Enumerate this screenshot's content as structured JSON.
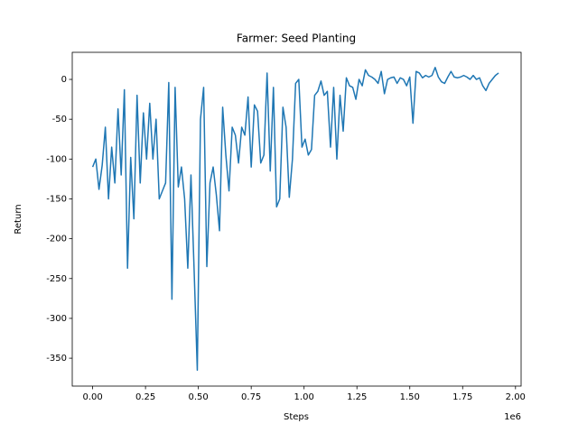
{
  "chart_data": {
    "type": "line",
    "title": "Farmer: Seed Planting",
    "xlabel": "Steps",
    "ylabel": "Return",
    "x_offset_label": "1e6",
    "x": [
      0,
      15000,
      30000,
      45000,
      60000,
      75000,
      90000,
      105000,
      120000,
      135000,
      150000,
      165000,
      180000,
      195000,
      210000,
      225000,
      240000,
      255000,
      270000,
      285000,
      300000,
      315000,
      330000,
      345000,
      360000,
      375000,
      390000,
      405000,
      420000,
      435000,
      450000,
      465000,
      480000,
      495000,
      510000,
      525000,
      540000,
      555000,
      570000,
      585000,
      600000,
      615000,
      630000,
      645000,
      660000,
      675000,
      690000,
      705000,
      720000,
      735000,
      750000,
      765000,
      780000,
      795000,
      810000,
      825000,
      840000,
      855000,
      870000,
      885000,
      900000,
      915000,
      930000,
      945000,
      960000,
      975000,
      990000,
      1005000,
      1020000,
      1035000,
      1050000,
      1065000,
      1080000,
      1095000,
      1110000,
      1125000,
      1140000,
      1155000,
      1170000,
      1185000,
      1200000,
      1215000,
      1230000,
      1245000,
      1260000,
      1275000,
      1290000,
      1305000,
      1320000,
      1335000,
      1350000,
      1365000,
      1380000,
      1395000,
      1410000,
      1425000,
      1440000,
      1455000,
      1470000,
      1485000,
      1500000,
      1515000,
      1530000,
      1545000,
      1560000,
      1575000,
      1590000,
      1605000,
      1620000,
      1635000,
      1650000,
      1665000,
      1680000,
      1695000,
      1710000,
      1725000,
      1740000,
      1755000,
      1770000,
      1785000,
      1800000,
      1815000,
      1830000,
      1845000,
      1860000,
      1875000,
      1890000,
      1905000,
      1920000
    ],
    "series": [
      {
        "name": "Return",
        "color": "#1f77b4",
        "values": [
          -110,
          -100,
          -138,
          -108,
          -60,
          -150,
          -85,
          -130,
          -37,
          -120,
          -13,
          -237,
          -98,
          -175,
          -20,
          -130,
          -42,
          -100,
          -30,
          -100,
          -50,
          -150,
          -140,
          -130,
          -4,
          -276,
          -10,
          -135,
          -110,
          -150,
          -237,
          -120,
          -240,
          -365,
          -50,
          -10,
          -235,
          -130,
          -110,
          -145,
          -190,
          -35,
          -95,
          -140,
          -60,
          -70,
          -105,
          -60,
          -70,
          -22,
          -110,
          -32,
          -40,
          -105,
          -95,
          8,
          -115,
          -10,
          -160,
          -150,
          -35,
          -60,
          -148,
          -100,
          -5,
          0,
          -85,
          -75,
          -95,
          -88,
          -20,
          -15,
          -2,
          -20,
          -15,
          -85,
          -10,
          -100,
          -20,
          -65,
          2,
          -8,
          -10,
          -25,
          0,
          -8,
          12,
          5,
          3,
          0,
          -5,
          10,
          -18,
          0,
          2,
          3,
          -5,
          2,
          0,
          -8,
          3,
          -55,
          10,
          8,
          2,
          5,
          3,
          5,
          15,
          3,
          -3,
          -5,
          3,
          10,
          3,
          2,
          3,
          5,
          3,
          0,
          5,
          0,
          2,
          -8,
          -14,
          -5,
          0,
          5,
          8
        ]
      }
    ],
    "xlim": [
      -96500,
      2026500
    ],
    "xticks": [
      {
        "value": 0,
        "label": "0.00"
      },
      {
        "value": 250000,
        "label": "0.25"
      },
      {
        "value": 500000,
        "label": "0.50"
      },
      {
        "value": 750000,
        "label": "0.75"
      },
      {
        "value": 1000000,
        "label": "1.00"
      },
      {
        "value": 1250000,
        "label": "1.25"
      },
      {
        "value": 1500000,
        "label": "1.50"
      },
      {
        "value": 1750000,
        "label": "1.75"
      },
      {
        "value": 2000000,
        "label": "2.00"
      }
    ],
    "ylim": [
      -385,
      34
    ],
    "yticks": [
      -350,
      -300,
      -250,
      -200,
      -150,
      -100,
      -50,
      0
    ],
    "grid": false
  }
}
